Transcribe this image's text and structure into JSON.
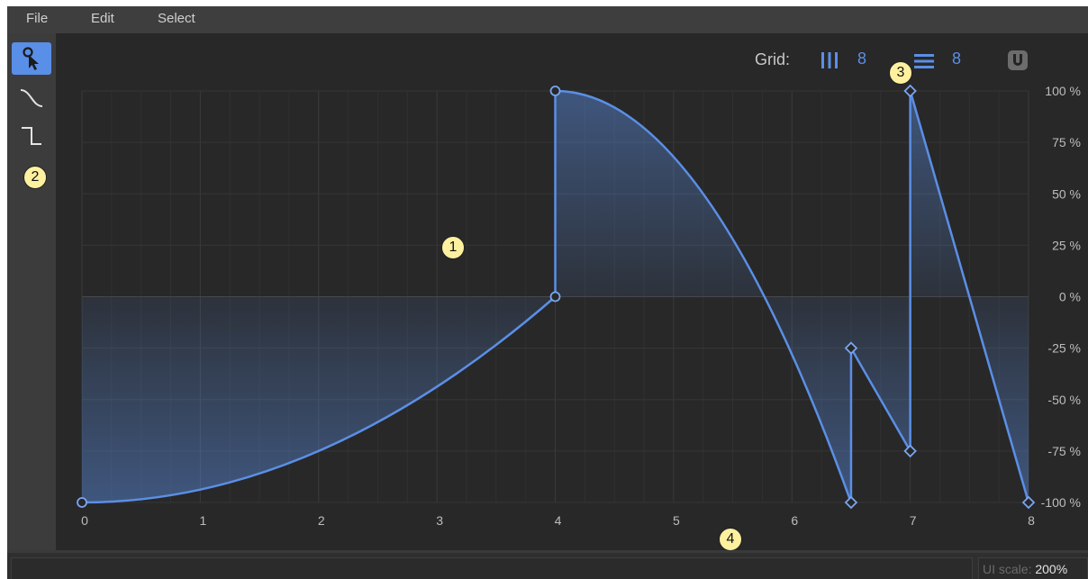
{
  "menu": {
    "file": "File",
    "edit": "Edit",
    "select": "Select"
  },
  "toolbar": {
    "tools": [
      {
        "name": "select-tool",
        "icon": "select-pointer-icon",
        "active": true
      },
      {
        "name": "curve-tool",
        "icon": "curve-icon",
        "active": false
      },
      {
        "name": "step-tool",
        "icon": "step-icon",
        "active": false
      }
    ]
  },
  "grid": {
    "label": "Grid:",
    "vertical_divisions": "8",
    "horizontal_divisions": "8",
    "vertical_icon": "vertical-lines-icon",
    "horizontal_icon": "horizontal-lines-icon",
    "snap_icon": "magnet-icon"
  },
  "status": {
    "ui_scale_label": "UI scale:",
    "ui_scale_value": "200%"
  },
  "callouts": [
    "1",
    "2",
    "3",
    "4"
  ],
  "colors": {
    "accent": "#5b8fe6",
    "background": "#282828",
    "grid_line": "#353535",
    "callout": "#fdf1a0"
  },
  "chart_data": {
    "type": "line",
    "x_ticks": [
      "0",
      "1",
      "2",
      "3",
      "4",
      "5",
      "6",
      "7",
      "8"
    ],
    "y_ticks": [
      "100 %",
      "75 %",
      "50 %",
      "25 %",
      "0 %",
      "-25 %",
      "-50 %",
      "-75 %",
      "-100 %"
    ],
    "xlim": [
      0,
      8
    ],
    "ylim": [
      -100,
      100
    ],
    "grid": true,
    "points": [
      {
        "x": 0,
        "y": -100,
        "shape": "circle"
      },
      {
        "x": 4,
        "y": 0,
        "shape": "circle"
      },
      {
        "x": 4,
        "y": 100,
        "shape": "circle"
      },
      {
        "x": 6.5,
        "y": -100,
        "shape": "diamond"
      },
      {
        "x": 6.5,
        "y": -25,
        "shape": "diamond"
      },
      {
        "x": 7,
        "y": -75,
        "shape": "diamond"
      },
      {
        "x": 7,
        "y": 100,
        "shape": "diamond"
      },
      {
        "x": 8,
        "y": -100,
        "shape": "diamond"
      }
    ],
    "segments": [
      {
        "from": 0,
        "to": 1,
        "curve": "ease-in"
      },
      {
        "from": 1,
        "to": 2,
        "curve": "linear"
      },
      {
        "from": 2,
        "to": 3,
        "curve": "ease-in"
      },
      {
        "from": 3,
        "to": 4,
        "curve": "linear"
      },
      {
        "from": 4,
        "to": 5,
        "curve": "linear"
      },
      {
        "from": 5,
        "to": 6,
        "curve": "linear"
      },
      {
        "from": 6,
        "to": 7,
        "curve": "linear"
      }
    ]
  }
}
